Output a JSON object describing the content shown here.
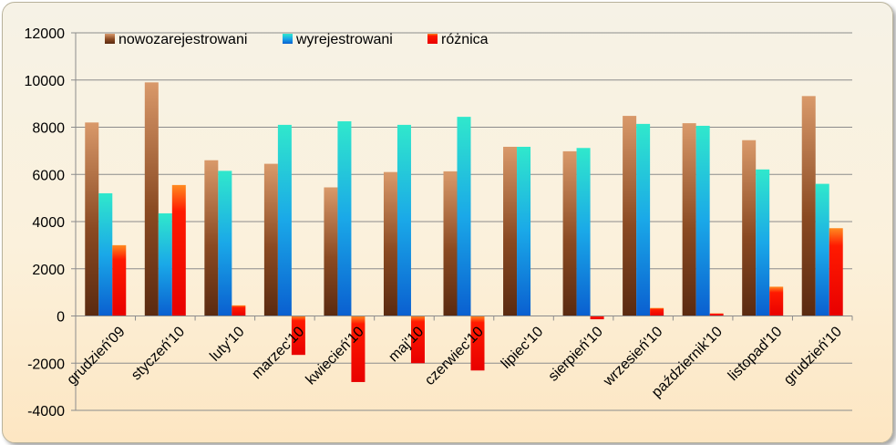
{
  "chart_data": {
    "type": "bar",
    "categories": [
      "grudzień'09",
      "styczeń'10",
      "luty'10",
      "marzec'10",
      "kwiecień'10",
      "maj'10",
      "czerwiec'10",
      "lipiec'10",
      "sierpień'10",
      "wrzesień'10",
      "październik'10",
      "listopad'10",
      "grudzień'10"
    ],
    "series": [
      {
        "name": "nowozarejestrowani",
        "values": [
          8200,
          9900,
          6600,
          6450,
          5450,
          6100,
          6130,
          7170,
          6980,
          8480,
          8170,
          7450,
          9320
        ]
      },
      {
        "name": "wyrejestrowani",
        "values": [
          5200,
          4350,
          6150,
          8100,
          8250,
          8100,
          8440,
          7170,
          7120,
          8140,
          8060,
          6210,
          5600
        ]
      },
      {
        "name": "różnica",
        "values": [
          3000,
          5550,
          450,
          -1650,
          -2800,
          -2000,
          -2310,
          0,
          -140,
          340,
          110,
          1240,
          3720
        ]
      }
    ],
    "ylim": [
      -4000,
      12000
    ],
    "yticks": [
      "12000",
      "10000",
      "8000",
      "6000",
      "4000",
      "2000",
      "0",
      "-2000",
      "-4000"
    ],
    "grid": true,
    "legend": "top-left"
  }
}
